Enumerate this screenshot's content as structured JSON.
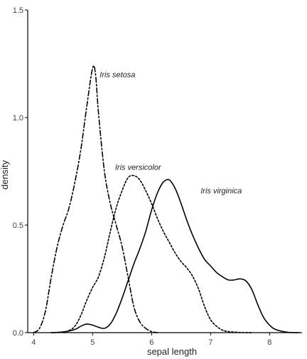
{
  "chart_data": {
    "type": "line",
    "title": "",
    "xlabel": "sepal length",
    "ylabel": "density",
    "xlim": [
      3.9,
      8.55
    ],
    "ylim": [
      0,
      1.5
    ],
    "x_ticks": [
      4,
      5,
      6,
      7,
      8
    ],
    "x_tick_labels": [
      "4",
      "5",
      "6",
      "7",
      "8"
    ],
    "y_ticks": [
      0,
      0.5,
      1.0,
      1.5
    ],
    "y_tick_labels": [
      "0.0",
      "0.5",
      "1.0",
      "1.5"
    ],
    "grid": false,
    "legend": "none (direct labels)",
    "series": [
      {
        "name": "Iris setosa",
        "line_style": "dashdot",
        "label_x": 5.12,
        "label_y": 1.2,
        "x": [
          4.0,
          4.1,
          4.2,
          4.3,
          4.4,
          4.5,
          4.6,
          4.7,
          4.8,
          4.9,
          5.0,
          5.05,
          5.1,
          5.2,
          5.3,
          5.4,
          5.5,
          5.6,
          5.7,
          5.8,
          5.9,
          6.0,
          6.1
        ],
        "y": [
          0.0,
          0.02,
          0.1,
          0.26,
          0.4,
          0.5,
          0.58,
          0.7,
          0.85,
          1.05,
          1.23,
          1.2,
          1.02,
          0.75,
          0.6,
          0.5,
          0.4,
          0.26,
          0.12,
          0.05,
          0.02,
          0.005,
          0.0
        ]
      },
      {
        "name": "Iris versicolor",
        "line_style": "dotted",
        "label_x": 5.38,
        "label_y": 0.77,
        "x": [
          4.3,
          4.5,
          4.6,
          4.7,
          4.8,
          4.9,
          5.0,
          5.1,
          5.2,
          5.3,
          5.4,
          5.5,
          5.6,
          5.7,
          5.8,
          5.9,
          6.0,
          6.1,
          6.2,
          6.3,
          6.4,
          6.5,
          6.6,
          6.7,
          6.8,
          6.9,
          7.0,
          7.1,
          7.2,
          7.3,
          7.5,
          7.7
        ],
        "y": [
          0.0,
          0.003,
          0.01,
          0.03,
          0.08,
          0.15,
          0.21,
          0.26,
          0.35,
          0.47,
          0.58,
          0.66,
          0.72,
          0.73,
          0.71,
          0.66,
          0.6,
          0.53,
          0.47,
          0.42,
          0.37,
          0.33,
          0.3,
          0.26,
          0.2,
          0.12,
          0.06,
          0.03,
          0.012,
          0.005,
          0.001,
          0.0
        ]
      },
      {
        "name": "Iris virginica",
        "line_style": "solid",
        "label_x": 6.83,
        "label_y": 0.66,
        "x": [
          4.3,
          4.5,
          4.7,
          4.8,
          4.9,
          5.0,
          5.1,
          5.2,
          5.3,
          5.4,
          5.5,
          5.6,
          5.7,
          5.8,
          5.9,
          6.0,
          6.1,
          6.2,
          6.3,
          6.4,
          6.5,
          6.6,
          6.7,
          6.8,
          6.9,
          7.0,
          7.1,
          7.2,
          7.3,
          7.4,
          7.5,
          7.6,
          7.7,
          7.8,
          7.9,
          8.0,
          8.1,
          8.3,
          8.5
        ],
        "y": [
          0.0,
          0.003,
          0.015,
          0.03,
          0.04,
          0.035,
          0.025,
          0.02,
          0.04,
          0.09,
          0.16,
          0.24,
          0.32,
          0.39,
          0.47,
          0.57,
          0.65,
          0.7,
          0.71,
          0.67,
          0.6,
          0.52,
          0.45,
          0.39,
          0.34,
          0.31,
          0.28,
          0.26,
          0.245,
          0.245,
          0.25,
          0.24,
          0.2,
          0.13,
          0.07,
          0.035,
          0.015,
          0.002,
          0.0
        ]
      }
    ]
  }
}
